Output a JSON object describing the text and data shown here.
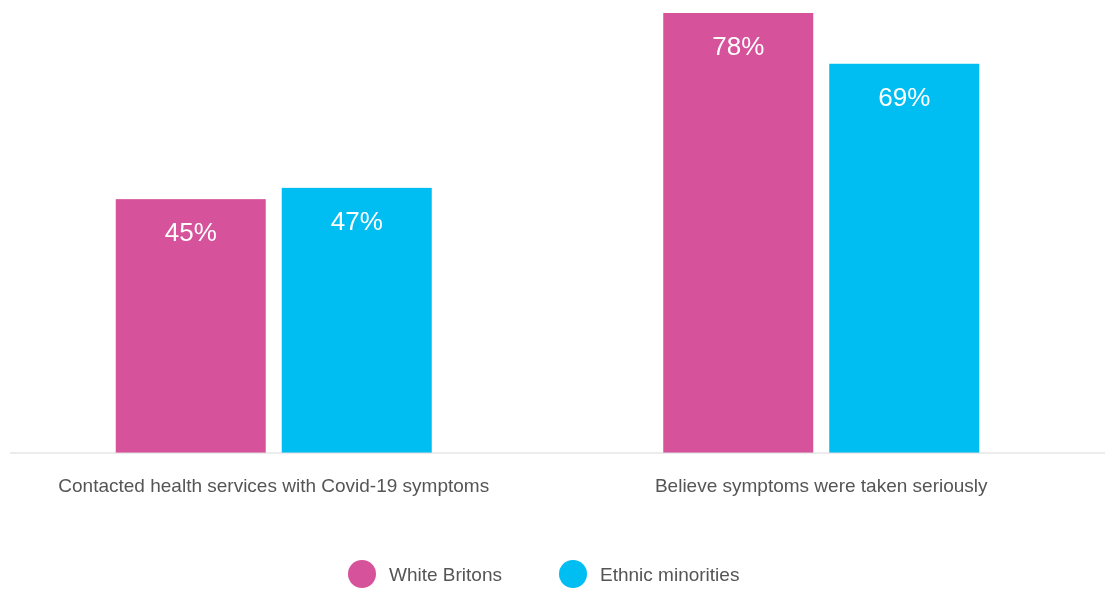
{
  "chart_data": {
    "type": "bar",
    "categories": [
      "Contacted health services with Covid-19 symptoms",
      "Believe symptoms were taken seriously"
    ],
    "series": [
      {
        "name": "White Britons",
        "color": "#d6539b",
        "values": [
          45,
          78
        ],
        "value_labels": [
          "45%",
          "78%"
        ]
      },
      {
        "name": "Ethnic minorities",
        "color": "#00bdf2",
        "values": [
          47,
          69
        ],
        "value_labels": [
          "47%",
          "69%"
        ]
      }
    ],
    "legend": "bottom"
  }
}
